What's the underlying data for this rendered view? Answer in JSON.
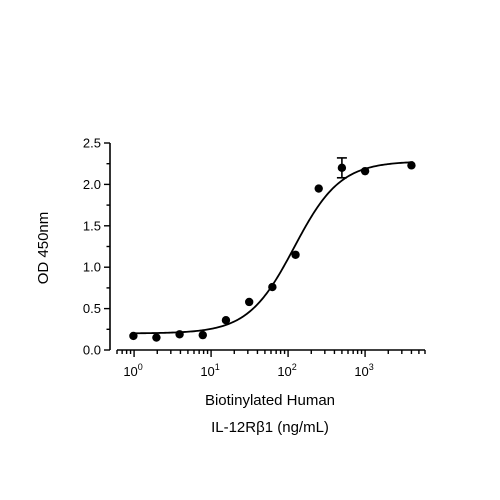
{
  "chart_data": {
    "type": "scatter",
    "xlabel_line1": "Biotinylated Human",
    "xlabel_line2": "IL-12Rβ1 (ng/mL)",
    "ylabel": "OD 450nm",
    "xscale": "log",
    "xlim": [
      0.6,
      6000
    ],
    "ylim": [
      0,
      2.5
    ],
    "yticks": [
      "0.0",
      "0.5",
      "1.0",
      "1.5",
      "2.0",
      "2.5"
    ],
    "xticks": [
      {
        "base": "10",
        "exp": "0"
      },
      {
        "base": "10",
        "exp": "1"
      },
      {
        "base": "10",
        "exp": "2"
      },
      {
        "base": "10",
        "exp": "3"
      }
    ],
    "points": [
      {
        "x": 0.98,
        "y": 0.17
      },
      {
        "x": 1.95,
        "y": 0.15
      },
      {
        "x": 3.9,
        "y": 0.19
      },
      {
        "x": 7.8,
        "y": 0.18
      },
      {
        "x": 15.6,
        "y": 0.36
      },
      {
        "x": 31.25,
        "y": 0.58
      },
      {
        "x": 62.5,
        "y": 0.76
      },
      {
        "x": 125,
        "y": 1.15
      },
      {
        "x": 250,
        "y": 1.95
      },
      {
        "x": 500,
        "y": 2.2,
        "err": 0.12
      },
      {
        "x": 1000,
        "y": 2.16
      },
      {
        "x": 4000,
        "y": 2.23
      }
    ],
    "fit": {
      "bottom": 0.2,
      "top": 2.28,
      "ec50": 120,
      "hill": 1.45
    },
    "grid": false,
    "legend": "none"
  }
}
